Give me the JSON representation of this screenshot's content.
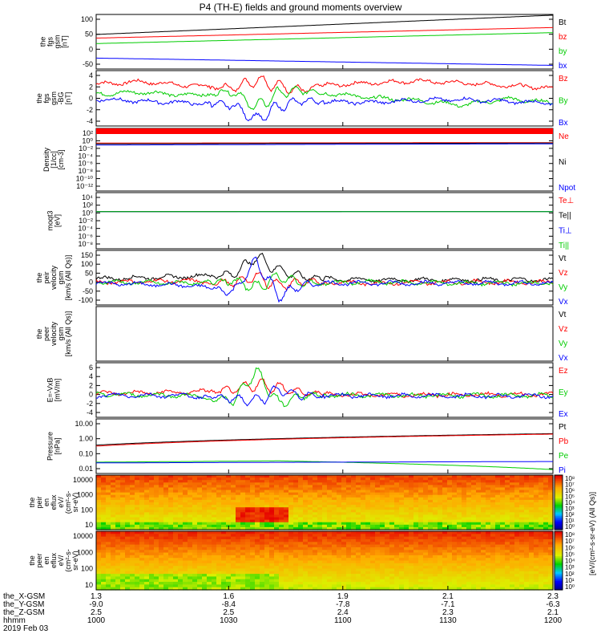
{
  "chart_data": {
    "type": "line",
    "title": "P4 (TH-E) fields and ground moments overview",
    "panels": [
      {
        "id": "fgs",
        "ylabel": [
          "the",
          "fgs",
          "gsm",
          "[nT]"
        ],
        "ylim": [
          -50,
          100
        ],
        "yticks": [
          "100",
          "50",
          "0",
          "-50"
        ],
        "series": [
          {
            "name": "Bt",
            "color": "#000000",
            "x": [
              0,
              1
            ],
            "y": [
              45,
              98
            ]
          },
          {
            "name": "bz",
            "color": "#ff0000",
            "x": [
              0,
              1
            ],
            "y": [
              35,
              64
            ]
          },
          {
            "name": "by",
            "color": "#00cc00",
            "x": [
              0,
              1
            ],
            "y": [
              20,
              50
            ]
          },
          {
            "name": "bx",
            "color": "#0000ff",
            "x": [
              0,
              1
            ],
            "y": [
              -20,
              -40
            ]
          }
        ]
      },
      {
        "id": "fgs_dgsm",
        "ylabel": [
          "the",
          "fgs",
          "gsm",
          "-BG",
          "[nT]"
        ],
        "ylim": [
          -5,
          4
        ],
        "yticks": [
          "4",
          "2",
          "0",
          "-2",
          "-4"
        ],
        "series": [
          {
            "name": "Bz",
            "color": "#ff0000",
            "x": [
              0,
              0.1,
              0.2,
              0.3,
              0.35,
              0.4,
              0.45,
              0.5,
              0.6,
              0.7,
              0.8,
              0.9,
              1
            ],
            "y": [
              1.8,
              2.2,
              1.6,
              1.2,
              2.5,
              1.5,
              0.8,
              1.6,
              2.0,
              2.3,
              2.0,
              1.6,
              1.2
            ]
          },
          {
            "name": "By",
            "color": "#00cc00",
            "x": [
              0,
              0.1,
              0.2,
              0.3,
              0.35,
              0.4,
              0.45,
              0.5,
              0.6,
              0.7,
              0.8,
              0.9,
              1
            ],
            "y": [
              0.2,
              0.5,
              0.0,
              0.6,
              -2.0,
              0.4,
              0.8,
              0.4,
              -0.4,
              -0.8,
              -1.6,
              -0.6,
              -1.2
            ]
          },
          {
            "name": "Bx",
            "color": "#0000ff",
            "x": [
              0,
              0.1,
              0.2,
              0.3,
              0.35,
              0.4,
              0.45,
              0.5,
              0.6,
              0.7,
              0.8,
              0.9,
              1
            ],
            "y": [
              -0.6,
              -1.0,
              -1.2,
              -1.6,
              -4.0,
              -1.8,
              -0.9,
              -1.0,
              -1.2,
              -0.8,
              -0.7,
              -1.0,
              -1.3
            ]
          }
        ]
      },
      {
        "id": "density",
        "ylabel": [
          "Density",
          "[1/cc]",
          "[cm-3]"
        ],
        "ylim": [
          -12,
          3
        ],
        "log": true,
        "yticks": [
          "10²",
          "10⁰",
          "10⁻²",
          "10⁻⁴",
          "10⁻⁶",
          "10⁻⁸",
          "10⁻¹⁰",
          "10⁻¹²"
        ],
        "series": [
          {
            "name": "Ne",
            "color": "#ff0000",
            "x": [
              0,
              1
            ],
            "y": [
              0.3,
              0.4
            ]
          },
          {
            "name": "Ni",
            "color": "#000000",
            "x": [
              0,
              1
            ],
            "y": [
              0.2,
              0.3
            ]
          },
          {
            "name": "Npot",
            "color": "#0000ff",
            "x": [
              0,
              1
            ],
            "y": [
              0.1,
              0.2
            ]
          }
        ]
      },
      {
        "id": "temperature",
        "ylabel": [
          "moqt3",
          "[eV]"
        ],
        "ylim": [
          -8,
          5
        ],
        "log": true,
        "yticks": [
          "10⁴",
          "10²",
          "10⁰",
          "10⁻²",
          "10⁻⁴",
          "10⁻⁶",
          "10⁻⁸"
        ],
        "series": [
          {
            "name": "Te⊥",
            "color": "#ff0000",
            "x": [
              0,
              1
            ],
            "y": [
              4.2,
              4.3
            ]
          },
          {
            "name": "Te||",
            "color": "#000000",
            "x": [
              0,
              1
            ],
            "y": [
              4.1,
              4.2
            ]
          },
          {
            "name": "Ti⊥",
            "color": "#0000ff",
            "x": [
              0,
              1
            ],
            "y": [
              4.0,
              4.1
            ]
          },
          {
            "name": "Ti||",
            "color": "#00cc00",
            "x": [
              0,
              1
            ],
            "y": [
              3.9,
              4.0
            ]
          }
        ]
      },
      {
        "id": "peir_velocity",
        "ylabel": [
          "the",
          "peir",
          "velocity",
          "gsm",
          "[km/s (All Qs)]"
        ],
        "ylim": [
          -100,
          150
        ],
        "yticks": [
          "150",
          "100",
          "50",
          "0",
          "-50",
          "-100"
        ],
        "series": [
          {
            "name": "Vt",
            "color": "#000000",
            "x": [
              0,
              0.2,
              0.3,
              0.35,
              0.4,
              0.45,
              0.5,
              0.6,
              0.8,
              1
            ],
            "y": [
              20,
              30,
              40,
              120,
              60,
              30,
              20,
              15,
              15,
              15
            ]
          },
          {
            "name": "Vz",
            "color": "#ff0000",
            "x": [
              0,
              0.2,
              0.3,
              0.35,
              0.4,
              0.45,
              0.5,
              0.6,
              0.8,
              1
            ],
            "y": [
              5,
              10,
              0,
              30,
              -10,
              5,
              5,
              0,
              5,
              5
            ]
          },
          {
            "name": "Vy",
            "color": "#00cc00",
            "x": [
              0,
              0.2,
              0.3,
              0.35,
              0.4,
              0.45,
              0.5,
              0.6,
              0.8,
              1
            ],
            "y": [
              5,
              0,
              10,
              -20,
              30,
              0,
              0,
              5,
              0,
              0
            ]
          },
          {
            "name": "Vx",
            "color": "#0000ff",
            "x": [
              0,
              0.2,
              0.3,
              0.35,
              0.4,
              0.45,
              0.5,
              0.6,
              0.8,
              1
            ],
            "y": [
              0,
              -10,
              -40,
              100,
              -60,
              -10,
              0,
              0,
              0,
              0
            ]
          }
        ]
      },
      {
        "id": "peer_velocity",
        "ylabel": [
          "the",
          "peer",
          "velocity",
          "gsm",
          "[km/s (All Qs)]"
        ],
        "ylim": [
          0,
          1
        ],
        "yticks": [],
        "series": [
          {
            "name": "Vt",
            "color": "#000000",
            "x": [],
            "y": []
          },
          {
            "name": "Vz",
            "color": "#ff0000",
            "x": [],
            "y": []
          },
          {
            "name": "Vy",
            "color": "#00cc00",
            "x": [],
            "y": []
          },
          {
            "name": "Vx",
            "color": "#0000ff",
            "x": [],
            "y": []
          }
        ]
      },
      {
        "id": "efield",
        "ylabel": [
          "E=-VxB",
          "[mV/m]"
        ],
        "ylim": [
          -4,
          6
        ],
        "yticks": [
          "6",
          "4",
          "2",
          "0",
          "-2",
          "-4"
        ],
        "series": [
          {
            "name": "Ez",
            "color": "#ff0000",
            "x": [
              0,
              0.2,
              0.3,
              0.35,
              0.4,
              0.45,
              0.5,
              0.7,
              1
            ],
            "y": [
              0.4,
              0.6,
              1.0,
              2.0,
              1.5,
              0.5,
              0.2,
              0.1,
              0.2
            ]
          },
          {
            "name": "Ey",
            "color": "#00cc00",
            "x": [
              0,
              0.2,
              0.3,
              0.35,
              0.4,
              0.45,
              0.5,
              0.7,
              1
            ],
            "y": [
              0.2,
              0.0,
              -1.0,
              4.5,
              -1.5,
              0.0,
              0.1,
              0.0,
              0.0
            ]
          },
          {
            "name": "Ex",
            "color": "#0000ff",
            "x": [
              0,
              0.2,
              0.3,
              0.35,
              0.4,
              0.45,
              0.5,
              0.7,
              1
            ],
            "y": [
              0.0,
              0.0,
              -0.6,
              -1.0,
              1.0,
              0.0,
              0.0,
              -0.1,
              -0.1
            ]
          }
        ]
      },
      {
        "id": "pressure",
        "ylabel": [
          "Pressure",
          "[nPa]"
        ],
        "ylim": [
          -1.5,
          1.3
        ],
        "log": true,
        "yticks": [
          "10.00",
          "1.00",
          "0.10",
          "0.01"
        ],
        "series": [
          {
            "name": "Pt",
            "color": "#000000",
            "x": [
              0,
              1
            ],
            "y": [
              0.9,
              3.5
            ]
          },
          {
            "name": "Pb",
            "color": "#ff0000",
            "x": [
              0,
              1
            ],
            "y": [
              0.8,
              3.3
            ]
          },
          {
            "name": "Pe",
            "color": "#00cc00",
            "x": [
              0,
              0.4,
              1
            ],
            "y": [
              0.12,
              0.14,
              0.05
            ]
          },
          {
            "name": "Pi",
            "color": "#0000ff",
            "x": [
              0,
              1
            ],
            "y": [
              0.11,
              0.13
            ]
          }
        ]
      },
      {
        "id": "peir_spec",
        "type": "heatmap",
        "ylabel": [
          "the",
          "peir",
          "en",
          "eflux",
          "eV/",
          "(cm²-s-",
          "sr-eV)"
        ],
        "yticks": [
          "10000",
          "1000",
          "100",
          "10"
        ],
        "colorbar_ticks": [
          "10⁸",
          "10⁷",
          "10⁶",
          "10⁵",
          "10⁴",
          "10³",
          "10²",
          "10¹",
          "10⁰"
        ]
      },
      {
        "id": "peer_spec",
        "type": "heatmap",
        "ylabel": [
          "the",
          "peer",
          "en",
          "eflux",
          "eV/",
          "(cm²-s-",
          "sr-eV)"
        ],
        "yticks": [
          "10000",
          "1000",
          "100",
          "10"
        ],
        "colorbar_ticks": [
          "10⁸",
          "10⁷",
          "10⁶",
          "10⁵",
          "10⁴",
          "10³",
          "10²",
          "10¹",
          "10⁰"
        ]
      }
    ],
    "colorbar_label": "[eV/(cm²-s-sr-eV) (All Qs)]",
    "x_rows": [
      {
        "label": "the_X-GSM",
        "values": [
          "1.3",
          "1.6",
          "1.9",
          "2.1",
          "2.3"
        ]
      },
      {
        "label": "the_Y-GSM",
        "values": [
          "-9.0",
          "-8.4",
          "-7.8",
          "-7.1",
          "-6.3"
        ]
      },
      {
        "label": "the_Z-GSM",
        "values": [
          "2.5",
          "2.5",
          "2.4",
          "2.3",
          "2.1"
        ]
      },
      {
        "label": "hhmm",
        "values": [
          "1000",
          "1030",
          "1100",
          "1130",
          "1200"
        ]
      }
    ],
    "date": "2019 Feb 03"
  }
}
